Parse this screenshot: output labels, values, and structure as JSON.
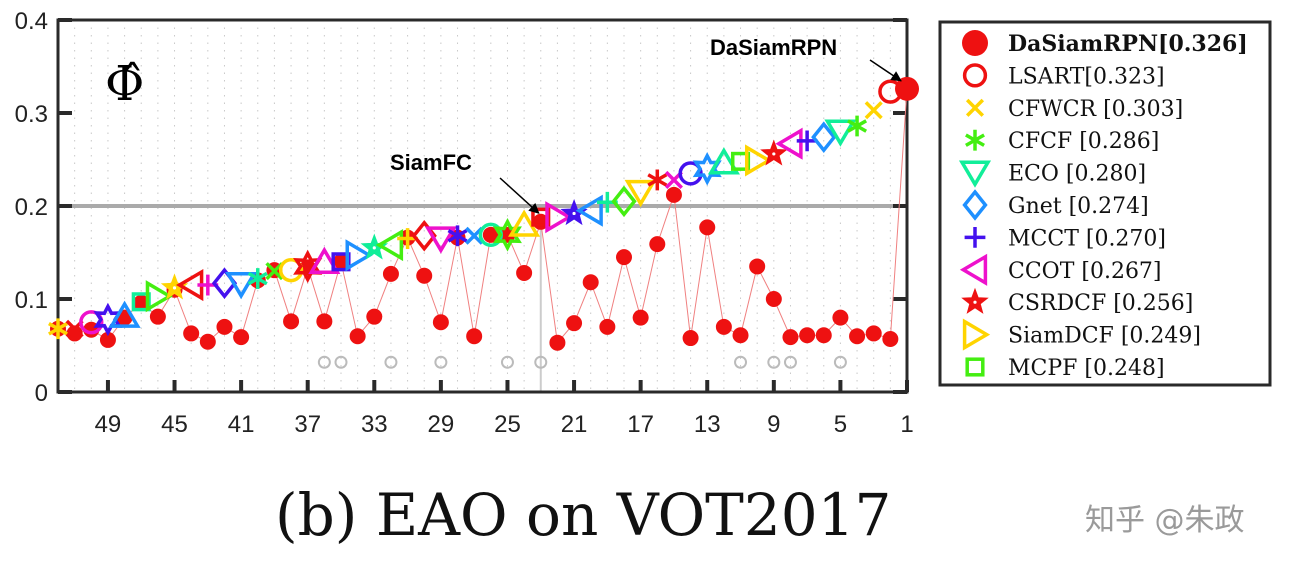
{
  "chart_data": {
    "type": "scatter",
    "title": "",
    "ylabel": "",
    "xlabel": "",
    "symbol_label": "Φ̂",
    "xlim": [
      52,
      1
    ],
    "ylim": [
      0,
      0.4
    ],
    "x_ticks": [
      49,
      45,
      41,
      37,
      33,
      29,
      25,
      21,
      17,
      13,
      9,
      5,
      1
    ],
    "y_ticks": [
      "0",
      "0.1",
      "0.2",
      "0.3",
      "0.4"
    ],
    "y_tick_values": [
      0,
      0.1,
      0.2,
      0.3,
      0.4
    ],
    "reference_line": 0.2,
    "grid": "vertical-dotted",
    "legend_position": "right",
    "color_cycle": [
      "#ee1111",
      "#ffd400",
      "#44ee11",
      "#11ee99",
      "#1e90ff",
      "#4411ee",
      "#ee11cc"
    ],
    "marker_cycle": [
      "circle",
      "x",
      "asterisk",
      "triangle-down",
      "diamond",
      "plus",
      "triangle-left",
      "star",
      "triangle-right",
      "square",
      "triangle-up",
      "hexagram"
    ],
    "ranks": [
      1,
      2,
      3,
      4,
      5,
      6,
      7,
      8,
      9,
      10,
      11,
      12,
      13,
      14,
      15,
      16,
      17,
      18,
      19,
      20,
      21,
      22,
      23,
      24,
      25,
      26,
      27,
      28,
      29,
      30,
      31,
      32,
      33,
      34,
      35,
      36,
      37,
      38,
      39,
      40,
      41,
      42,
      43,
      44,
      45,
      46,
      47,
      48,
      49,
      50,
      51,
      52
    ],
    "eao_sorted": [
      0.326,
      0.323,
      0.303,
      0.286,
      0.28,
      0.274,
      0.27,
      0.267,
      0.256,
      0.249,
      0.248,
      0.247,
      0.24,
      0.235,
      0.228,
      0.228,
      0.215,
      0.205,
      0.204,
      0.195,
      0.192,
      0.188,
      0.188,
      0.18,
      0.169,
      0.169,
      0.168,
      0.168,
      0.165,
      0.168,
      0.165,
      0.158,
      0.155,
      0.147,
      0.14,
      0.14,
      0.135,
      0.131,
      0.13,
      0.122,
      0.116,
      0.117,
      0.115,
      0.115,
      0.112,
      0.103,
      0.097,
      0.082,
      0.078,
      0.075,
      0.068,
      0.068
    ],
    "red_series": [
      0.326,
      0.057,
      0.063,
      0.06,
      0.08,
      0.061,
      0.061,
      0.059,
      0.1,
      0.135,
      0.061,
      0.07,
      0.177,
      0.058,
      0.212,
      0.159,
      0.08,
      0.145,
      0.07,
      0.118,
      0.074,
      0.053,
      0.183,
      0.128,
      0.169,
      0.169,
      0.06,
      0.166,
      0.075,
      0.125,
      0.166,
      0.127,
      0.081,
      0.06,
      0.14,
      0.076,
      0.134,
      0.076,
      0.131,
      0.12,
      0.059,
      0.07,
      0.054,
      0.063,
      0.11,
      0.081,
      0.096,
      0.08,
      0.056,
      0.067,
      0.063,
      0.068
    ],
    "gray_marks": {
      "ranks": [
        36,
        35,
        32,
        29,
        25,
        23,
        11,
        9,
        8,
        5
      ],
      "value": 0.032
    },
    "highlight_ranks": [
      23,
      1
    ],
    "annotations": [
      {
        "text": "DaSiamRPN",
        "rank": 1
      },
      {
        "text": "SiamFC",
        "rank": 23
      }
    ],
    "legend": [
      {
        "label": "DaSiamRPN[0.326]",
        "marker": "filled-circle",
        "color": "#ee1111",
        "bold": true
      },
      {
        "label": "LSART[0.323]",
        "marker": "circle",
        "color": "#ee1111"
      },
      {
        "label": "CFWCR [0.303]",
        "marker": "x",
        "color": "#ffd400"
      },
      {
        "label": "CFCF [0.286]",
        "marker": "asterisk",
        "color": "#44ee11"
      },
      {
        "label": "ECO [0.280]",
        "marker": "triangle-down",
        "color": "#11ee99"
      },
      {
        "label": "Gnet [0.274]",
        "marker": "diamond",
        "color": "#1e90ff"
      },
      {
        "label": "MCCT [0.270]",
        "marker": "plus",
        "color": "#4411ee"
      },
      {
        "label": "CCOT [0.267]",
        "marker": "triangle-left",
        "color": "#ee11cc"
      },
      {
        "label": "CSRDCF [0.256]",
        "marker": "star",
        "color": "#ee1111"
      },
      {
        "label": "SiamDCF [0.249]",
        "marker": "triangle-right",
        "color": "#ffd400"
      },
      {
        "label": "MCPF [0.248]",
        "marker": "square",
        "color": "#44ee11"
      }
    ]
  },
  "caption": "(b) EAO on VOT2017",
  "watermark": "知乎 @朱政"
}
